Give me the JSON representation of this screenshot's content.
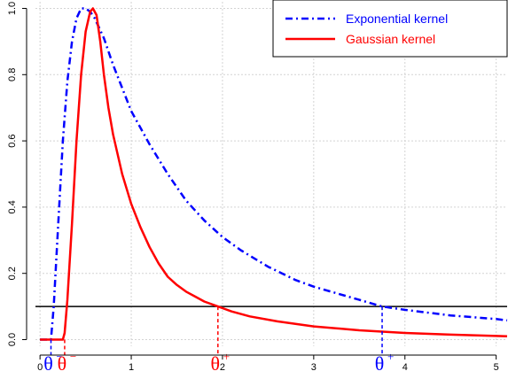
{
  "chart_data": {
    "type": "line",
    "title": "",
    "xlabel": "",
    "ylabel": "",
    "xlim": [
      -0.05,
      5.12
    ],
    "ylim": [
      -0.02,
      1.02
    ],
    "xticks": [
      0,
      1,
      2,
      3,
      4,
      5
    ],
    "xtick_labels": [
      "0",
      "1",
      "2",
      "3",
      "4",
      "5"
    ],
    "yticks": [
      0.0,
      0.2,
      0.4,
      0.6,
      0.8,
      1.0
    ],
    "ytick_labels": [
      "0.0",
      "0.2",
      "0.4",
      "0.6",
      "0.8",
      "1.0"
    ],
    "grid": true,
    "legend_position": "top-right",
    "threshold": 0.1,
    "series": [
      {
        "name": "Exponential kernel",
        "color": "#0000ff",
        "style": "dashdot",
        "x": [
          0.0,
          0.12,
          0.15,
          0.2,
          0.25,
          0.3,
          0.35,
          0.4,
          0.45,
          0.5,
          0.55,
          0.6,
          0.7,
          0.8,
          0.9,
          1.0,
          1.2,
          1.4,
          1.6,
          1.8,
          2.0,
          2.2,
          2.5,
          2.8,
          3.0,
          3.5,
          3.75,
          4.0,
          4.5,
          5.0,
          5.12
        ],
        "y": [
          0.0,
          0.0,
          0.1,
          0.35,
          0.6,
          0.78,
          0.9,
          0.97,
          1.0,
          1.0,
          0.99,
          0.97,
          0.91,
          0.83,
          0.76,
          0.69,
          0.59,
          0.5,
          0.42,
          0.36,
          0.31,
          0.27,
          0.22,
          0.18,
          0.16,
          0.12,
          0.1,
          0.09,
          0.073,
          0.062,
          0.058
        ]
      },
      {
        "name": "Gaussian kernel",
        "color": "#ff0000",
        "style": "solid",
        "x": [
          0.0,
          0.25,
          0.27,
          0.3,
          0.35,
          0.4,
          0.45,
          0.5,
          0.55,
          0.58,
          0.62,
          0.66,
          0.7,
          0.75,
          0.8,
          0.9,
          1.0,
          1.1,
          1.2,
          1.3,
          1.4,
          1.5,
          1.6,
          1.7,
          1.8,
          1.95,
          2.1,
          2.3,
          2.6,
          3.0,
          3.5,
          4.0,
          4.5,
          5.0,
          5.12
        ],
        "y": [
          0.0,
          0.0,
          0.02,
          0.12,
          0.35,
          0.6,
          0.8,
          0.93,
          0.99,
          1.0,
          0.98,
          0.9,
          0.8,
          0.7,
          0.62,
          0.5,
          0.41,
          0.34,
          0.28,
          0.23,
          0.19,
          0.165,
          0.145,
          0.13,
          0.115,
          0.1,
          0.085,
          0.07,
          0.055,
          0.04,
          0.028,
          0.02,
          0.015,
          0.011,
          0.01
        ]
      }
    ],
    "markers": [
      {
        "sup": "−",
        "x": 0.12,
        "color": "#0000ff",
        "dashed_to": 0.0
      },
      {
        "sup": "−",
        "x": 0.27,
        "color": "#ff0000",
        "dashed_to": 0.0
      },
      {
        "sup": "+",
        "x": 1.95,
        "color": "#ff0000",
        "dashed_to": 0.1
      },
      {
        "sup": "+",
        "x": 3.75,
        "color": "#0000ff",
        "dashed_to": 0.1
      }
    ]
  },
  "legend": {
    "items": [
      {
        "label": "Exponential kernel",
        "color": "#0000ff",
        "style": "dashdot"
      },
      {
        "label": "Gaussian kernel",
        "color": "#ff0000",
        "style": "solid"
      }
    ]
  },
  "theta_symbol": "θ"
}
